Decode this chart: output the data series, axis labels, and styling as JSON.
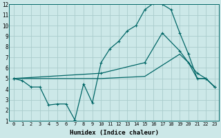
{
  "xlabel": "Humidex (Indice chaleur)",
  "background_color": "#cce8e8",
  "grid_color": "#aacccc",
  "line_color": "#006666",
  "xlim": [
    -0.5,
    23.5
  ],
  "ylim": [
    1,
    12
  ],
  "xticks": [
    0,
    1,
    2,
    3,
    4,
    5,
    6,
    7,
    8,
    9,
    10,
    11,
    12,
    13,
    14,
    15,
    16,
    17,
    18,
    19,
    20,
    21,
    22,
    23
  ],
  "yticks": [
    1,
    2,
    3,
    4,
    5,
    6,
    7,
    8,
    9,
    10,
    11,
    12
  ],
  "series1_x": [
    0,
    1,
    2,
    3,
    4,
    5,
    6,
    7,
    8,
    9,
    10,
    11,
    12,
    13,
    14,
    15,
    16,
    17,
    18,
    19,
    20,
    21,
    22,
    23
  ],
  "series1_y": [
    5.0,
    4.8,
    4.2,
    4.2,
    2.5,
    2.6,
    2.6,
    1.1,
    4.5,
    2.7,
    6.5,
    7.8,
    8.5,
    9.5,
    10.0,
    11.5,
    12.1,
    12.0,
    11.5,
    9.3,
    7.3,
    5.0,
    5.0,
    4.2
  ],
  "series2_x": [
    0,
    10,
    15,
    17,
    19,
    20,
    21,
    22,
    23
  ],
  "series2_y": [
    5.0,
    5.5,
    6.5,
    9.3,
    7.6,
    6.5,
    5.5,
    5.0,
    4.2
  ],
  "series3_x": [
    0,
    10,
    15,
    19,
    20,
    21,
    22,
    23
  ],
  "series3_y": [
    5.0,
    5.0,
    5.2,
    7.3,
    6.5,
    5.0,
    5.0,
    4.2
  ]
}
